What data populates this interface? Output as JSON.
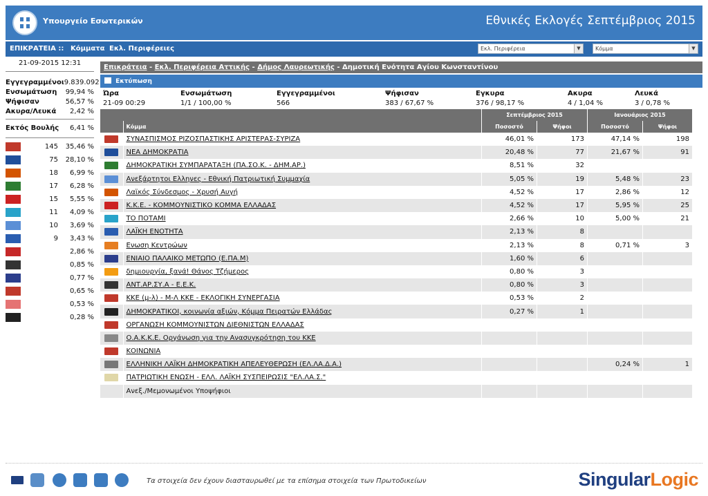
{
  "header": {
    "ministry": "Υπουργείο Εσωτερικών",
    "title": "Εθνικές Εκλογές Σεπτέμβριος 2015"
  },
  "nav": {
    "title": "ΕΠΙΚΡΑΤΕΙΑ ::",
    "parties": "Κόμματα",
    "regions": "Εκλ. Περιφέρειες",
    "select_region": "Εκλ. Περιφέρεια",
    "select_party": "Κόμμα"
  },
  "left": {
    "datetime": "21-09-2015 12:31",
    "registered_label": "Εγγεγραμμένοι",
    "registered_value": "9.839.092",
    "integration_label": "Ενσωμάτωση",
    "integration_value": "99,94 %",
    "voted_label": "Ψήφισαν",
    "voted_value": "56,57 %",
    "invalid_label": "Ακυρα/Λευκά",
    "invalid_value": "2,42 %",
    "outside_label": "Εκτός Βουλής",
    "outside_value": "6,41 %",
    "parties": [
      {
        "seats": "145",
        "pct": "35,46 %",
        "color": "#c0392b"
      },
      {
        "seats": "75",
        "pct": "28,10 %",
        "color": "#1f4e9a"
      },
      {
        "seats": "18",
        "pct": "6,99 %",
        "color": "#d35400"
      },
      {
        "seats": "17",
        "pct": "6,28 %",
        "color": "#2e7d32"
      },
      {
        "seats": "15",
        "pct": "5,55 %",
        "color": "#cc2222"
      },
      {
        "seats": "11",
        "pct": "4,09 %",
        "color": "#29a3c9"
      },
      {
        "seats": "10",
        "pct": "3,69 %",
        "color": "#5b8fd6"
      },
      {
        "seats": "9",
        "pct": "3,43 %",
        "color": "#2a5db0"
      },
      {
        "seats": "",
        "pct": "2,86 %",
        "color": "#c62828"
      },
      {
        "seats": "",
        "pct": "0,85 %",
        "color": "#333333"
      },
      {
        "seats": "",
        "pct": "0,77 %",
        "color": "#2c3e8c"
      },
      {
        "seats": "",
        "pct": "0,65 %",
        "color": "#c0392b"
      },
      {
        "seats": "",
        "pct": "0,53 %",
        "color": "#e57373"
      },
      {
        "seats": "",
        "pct": "0,28 %",
        "color": "#222222"
      }
    ]
  },
  "breadcrumb": {
    "b1": "Επικράτεια",
    "sep": " - ",
    "b2": "Εκλ. Περιφέρεια Αττικής",
    "b3": "Δήμος Λαυρεωτικής",
    "b4": "Δημοτική Ενότητα Αγίου Κωνσταντίνου"
  },
  "print": "Εκτύπωση",
  "summary": {
    "h_time": "Ώρα",
    "h_integration": "Ενσωμάτωση",
    "h_registered": "Εγγεγραμμένοι",
    "h_voted": "Ψήφισαν",
    "h_valid": "Εγκυρα",
    "h_invalid": "Ακυρα",
    "h_blank": "Λευκά",
    "v_time": "21-09 00:29",
    "v_integration": "1/1 / 100,00 %",
    "v_registered": "566",
    "v_voted": "383 / 67,67 %",
    "v_valid": "376 / 98,17 %",
    "v_invalid": "4 / 1,04 %",
    "v_blank": "3 / 0,78 %"
  },
  "table": {
    "period1": "Σεπτέμβριος 2015",
    "period2": "Ιανουάριος 2015",
    "col_party": "Κόμμα",
    "col_pct": "Ποσοστό",
    "col_votes": "Ψήφοι",
    "rows": [
      {
        "name": "ΣΥΝΑΣΠΙΣΜΟΣ ΡΙΖΟΣΠΑΣΤΙΚΗΣ ΑΡΙΣΤΕΡΑΣ-ΣΥΡΙΖΑ",
        "p1": "46,01 %",
        "v1": "173",
        "p2": "47,14 %",
        "v2": "198",
        "color": "#c0392b"
      },
      {
        "name": "ΝΕΑ ΔΗΜΟΚΡΑΤΙΑ",
        "p1": "20,48 %",
        "v1": "77",
        "p2": "21,67 %",
        "v2": "91",
        "color": "#1f4e9a"
      },
      {
        "name": "ΔΗΜΟΚΡΑΤΙΚΗ ΣΥΜΠΑΡΑΤΑΞΗ (ΠΑ.ΣΟ.Κ. - ΔΗΜ.ΑΡ.)",
        "p1": "8,51 %",
        "v1": "32",
        "p2": "",
        "v2": "",
        "color": "#2e7d32"
      },
      {
        "name": "Ανεξάρτητοι Ελληνες - Εθνική Πατριωτική Συμμαχία",
        "p1": "5,05 %",
        "v1": "19",
        "p2": "5,48 %",
        "v2": "23",
        "color": "#5b8fd6"
      },
      {
        "name": "Λαϊκός Σύνδεσμος - Χρυσή Αυγή",
        "p1": "4,52 %",
        "v1": "17",
        "p2": "2,86 %",
        "v2": "12",
        "color": "#d35400"
      },
      {
        "name": "Κ.Κ.Ε. - ΚΟΜΜΟΥΝΙΣΤΙΚΟ ΚΟΜΜΑ ΕΛΛΑΔΑΣ",
        "p1": "4,52 %",
        "v1": "17",
        "p2": "5,95 %",
        "v2": "25",
        "color": "#cc2222"
      },
      {
        "name": "ΤΟ ΠΟΤΑΜΙ",
        "p1": "2,66 %",
        "v1": "10",
        "p2": "5,00 %",
        "v2": "21",
        "color": "#29a3c9"
      },
      {
        "name": "ΛΑΪΚΗ ΕΝΟΤΗΤΑ",
        "p1": "2,13 %",
        "v1": "8",
        "p2": "",
        "v2": "",
        "color": "#2a5db0"
      },
      {
        "name": "Ενωση Κεντρώων",
        "p1": "2,13 %",
        "v1": "8",
        "p2": "0,71 %",
        "v2": "3",
        "color": "#e67e22"
      },
      {
        "name": "ΕΝΙΑΙΟ ΠΑΛΑΙΚΟ ΜΕΤΩΠΟ (Ε.ΠΑ.Μ)",
        "p1": "1,60 %",
        "v1": "6",
        "p2": "",
        "v2": "",
        "color": "#2c3e8c"
      },
      {
        "name": "δημιουργία, ξανά! Θάνος Τζήμερος",
        "p1": "0,80 %",
        "v1": "3",
        "p2": "",
        "v2": "",
        "color": "#f39c12"
      },
      {
        "name": "ΑΝΤ.ΑΡ.ΣΥ.Α - Ε.Ε.Κ.",
        "p1": "0,80 %",
        "v1": "3",
        "p2": "",
        "v2": "",
        "color": "#333333"
      },
      {
        "name": "ΚΚΕ (μ-λ) - Μ-Λ ΚΚΕ - ΕΚΛΟΓΙΚΗ ΣΥΝΕΡΓΑΣΙΑ",
        "p1": "0,53 %",
        "v1": "2",
        "p2": "",
        "v2": "",
        "color": "#c0392b"
      },
      {
        "name": "ΔΗΜΟΚΡΑΤΙΚΟΙ, κοινωνία αξιών, Κόμμα Πειρατών Ελλάδας",
        "p1": "0,27 %",
        "v1": "1",
        "p2": "",
        "v2": "",
        "color": "#222222"
      },
      {
        "name": "ΟΡΓΑΝΩΣΗ ΚΟΜΜΟΥΝΙΣΤΩΝ ΔΙΕΘΝΙΣΤΩΝ ΕΛΛΑΔΑΣ",
        "p1": "",
        "v1": "",
        "p2": "",
        "v2": "",
        "color": "#c0392b"
      },
      {
        "name": "Ο.Α.Κ.Κ.Ε. Οργάνωση για την Ανασυγκρότηση του ΚΚΕ",
        "p1": "",
        "v1": "",
        "p2": "",
        "v2": "",
        "color": "#888888"
      },
      {
        "name": "ΚΟΙΝΩΝΙΑ",
        "p1": "",
        "v1": "",
        "p2": "",
        "v2": "",
        "color": "#c0392b"
      },
      {
        "name": "ΕΛΛΗΝΙΚΗ ΛΑΪΚΗ ΔΗΜΟΚΡΑΤΙΚΗ ΑΠΕΛΕΥΘΕΡΩΣΗ (ΕΛ.ΛΑ.Δ.Α.)",
        "p1": "",
        "v1": "",
        "p2": "0,24 %",
        "v2": "1",
        "color": "#777777"
      },
      {
        "name": "ΠΑΤΡΙΩΤΙΚΗ ΕΝΩΣΗ - ΕΛΛ. ΛΑΪΚΗ ΣΥΣΠΕΙΡΩΣΙΣ \"ΕΛ.ΛΑ.Σ.\"",
        "p1": "",
        "v1": "",
        "p2": "",
        "v2": "",
        "color": "#e0d7a8"
      },
      {
        "name": "Ανεξ./Μεμονωμένοι Υποψήφιοι",
        "p1": "",
        "v1": "",
        "p2": "",
        "v2": "",
        "color": ""
      }
    ]
  },
  "footer": {
    "note": "Τα στοιχεία δεν έχουν διασταυρωθεί με τα επίσημα στοιχεία των Πρωτοδικείων",
    "brand_a": "Singular",
    "brand_b": "Logic"
  }
}
